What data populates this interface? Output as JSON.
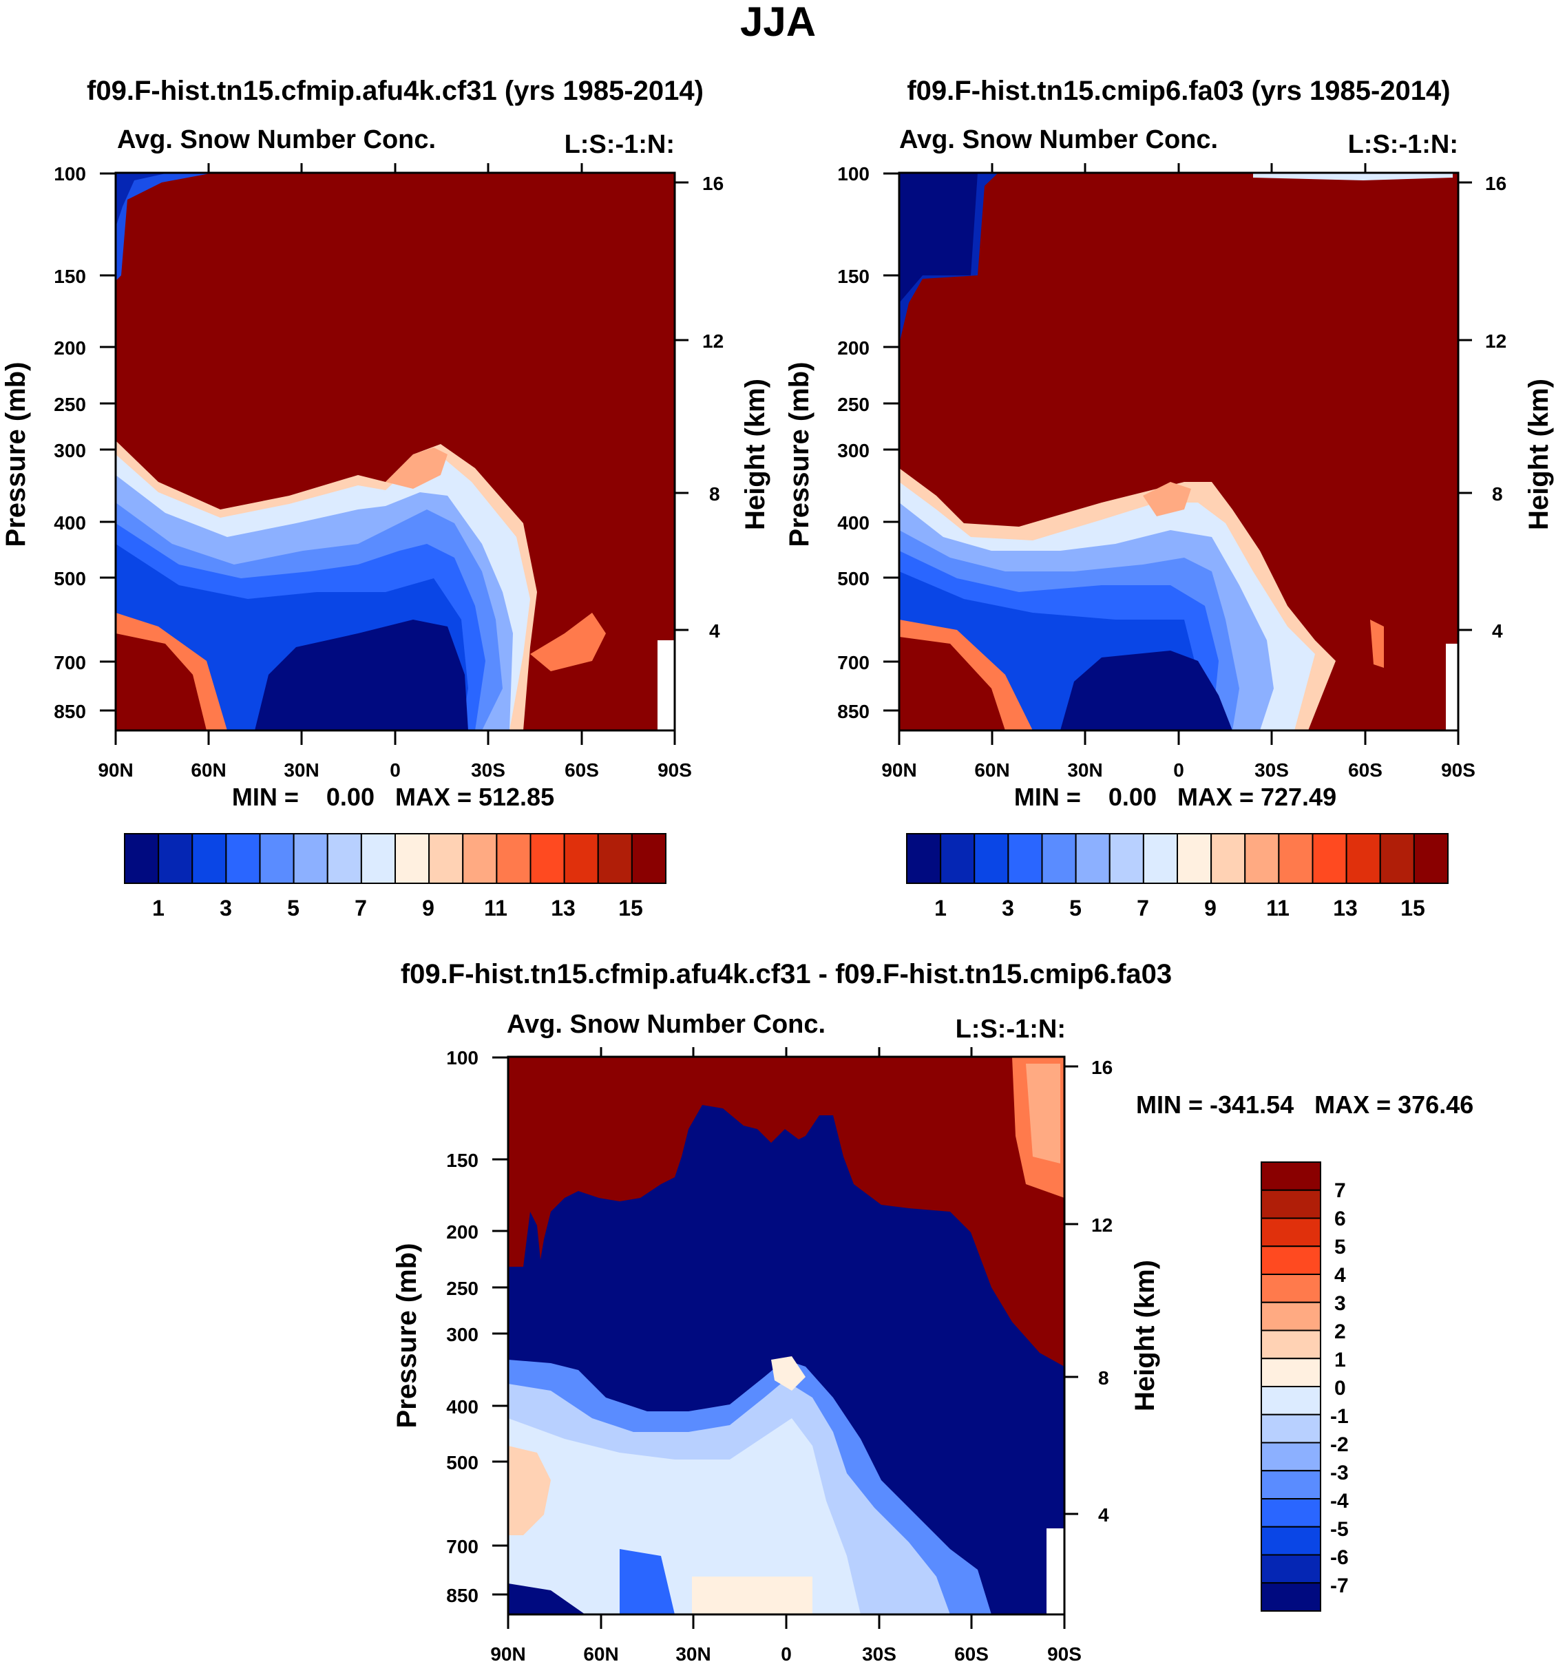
{
  "figure_title": "JJA",
  "chart_data": [
    {
      "type": "contour",
      "run_title": "f09.F-hist.tn15.cfmip.afu4k.cf31 (yrs 1985-2014)",
      "title": "Avg. Snow Number Conc.",
      "code": "L:S:-1:N:",
      "xlabel": "",
      "ylabel": "Pressure (mb)",
      "ylabel_right": "Height (km)",
      "x_ticks": [
        "90N",
        "60N",
        "30N",
        "0",
        "30S",
        "60S",
        "90S"
      ],
      "y_ticks": [
        "100",
        "150",
        "200",
        "250",
        "300",
        "400",
        "500",
        "700",
        "850"
      ],
      "y_ticks_right": [
        "16",
        "12",
        "8",
        "4"
      ],
      "min_label": "MIN =    0.00   MAX = 512.85",
      "min": 0.0,
      "max": 512.85
    },
    {
      "type": "contour",
      "run_title": "f09.F-hist.tn15.cmip6.fa03 (yrs 1985-2014)",
      "title": "Avg. Snow Number Conc.",
      "code": "L:S:-1:N:",
      "xlabel": "",
      "ylabel": "Pressure (mb)",
      "ylabel_right": "Height (km)",
      "x_ticks": [
        "90N",
        "60N",
        "30N",
        "0",
        "30S",
        "60S",
        "90S"
      ],
      "y_ticks": [
        "100",
        "150",
        "200",
        "250",
        "300",
        "400",
        "500",
        "700",
        "850"
      ],
      "y_ticks_right": [
        "16",
        "12",
        "8",
        "4"
      ],
      "min_label": "MIN =    0.00   MAX = 727.49",
      "min": 0.0,
      "max": 727.49
    },
    {
      "type": "contour",
      "run_title": "f09.F-hist.tn15.cfmip.afu4k.cf31 - f09.F-hist.tn15.cmip6.fa03",
      "title": "Avg. Snow Number Conc.",
      "code": "L:S:-1:N:",
      "xlabel": "",
      "ylabel": "Pressure (mb)",
      "ylabel_right": "Height (km)",
      "x_ticks": [
        "90N",
        "60N",
        "30N",
        "0",
        "30S",
        "60S",
        "90S"
      ],
      "y_ticks": [
        "100",
        "150",
        "200",
        "250",
        "300",
        "400",
        "500",
        "700",
        "850"
      ],
      "y_ticks_right": [
        "16",
        "12",
        "8",
        "4"
      ],
      "min_label": "MIN = -341.54   MAX = 376.46",
      "min": -341.54,
      "max": 376.46
    }
  ],
  "colorbar_main": {
    "colors": [
      "#000a80",
      "#0526b4",
      "#0a46e6",
      "#2a66ff",
      "#5a8cff",
      "#8cb0ff",
      "#b8d0ff",
      "#dcebff",
      "#fff0e0",
      "#ffd2b4",
      "#ffaa82",
      "#ff7a4c",
      "#ff4a20",
      "#e0300c",
      "#b01e08",
      "#8a0000"
    ],
    "labels": [
      "1",
      "3",
      "5",
      "7",
      "9",
      "11",
      "13",
      "15"
    ]
  },
  "colorbar_diff": {
    "colors": [
      "#8a0000",
      "#b01e08",
      "#e0300c",
      "#ff4a20",
      "#ff7a4c",
      "#ffaa82",
      "#ffd2b4",
      "#fff0e0",
      "#dcebff",
      "#b8d0ff",
      "#8cb0ff",
      "#5a8cff",
      "#2a66ff",
      "#0a46e6",
      "#0526b4",
      "#000a80"
    ],
    "labels": [
      "7",
      "6",
      "5",
      "4",
      "3",
      "2",
      "1",
      "0",
      "-1",
      "-2",
      "-3",
      "-4",
      "-5",
      "-6",
      "-7"
    ]
  }
}
